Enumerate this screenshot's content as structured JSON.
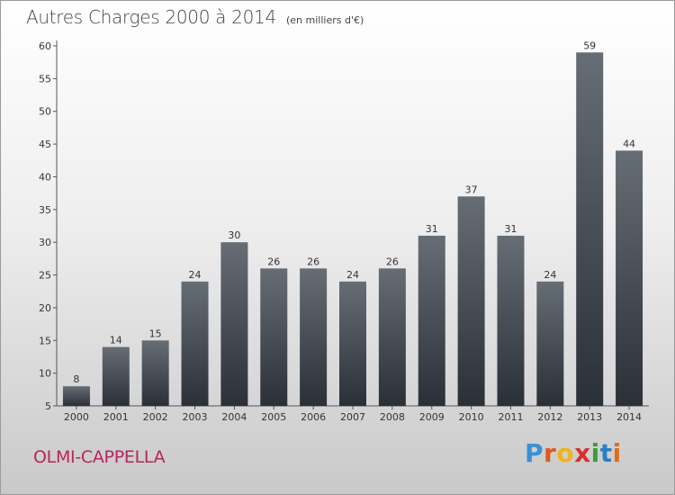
{
  "header": {
    "title": "Autres Charges 2000 à 2014",
    "unit": "(en milliers d'€)"
  },
  "footer": {
    "city": "OLMI-CAPPELLA",
    "logo_letters": [
      "P",
      "r",
      "o",
      "x",
      "i",
      "t",
      "i"
    ],
    "logo_colors": [
      "#3a8fd6",
      "#e05a1c",
      "#f2b21b",
      "#d9302c",
      "#3a9e3a",
      "#2a7fc6",
      "#e06b1c"
    ]
  },
  "colors": {
    "bar_top": "#666d75",
    "bar_bottom": "#2b3038",
    "city": "#b5265c"
  },
  "chart_data": {
    "type": "bar",
    "title": "Autres Charges 2000 à 2014",
    "subtitle": "(en milliers d'€)",
    "categories": [
      "2000",
      "2001",
      "2002",
      "2003",
      "2004",
      "2005",
      "2006",
      "2007",
      "2008",
      "2009",
      "2010",
      "2011",
      "2012",
      "2013",
      "2014"
    ],
    "values": [
      8,
      14,
      15,
      24,
      30,
      26,
      26,
      24,
      26,
      31,
      37,
      31,
      24,
      59,
      44
    ],
    "ylim": [
      5,
      60
    ],
    "yticks": [
      5,
      10,
      15,
      20,
      25,
      30,
      35,
      40,
      45,
      50,
      55,
      60
    ],
    "grid": false,
    "data_labels": true
  }
}
